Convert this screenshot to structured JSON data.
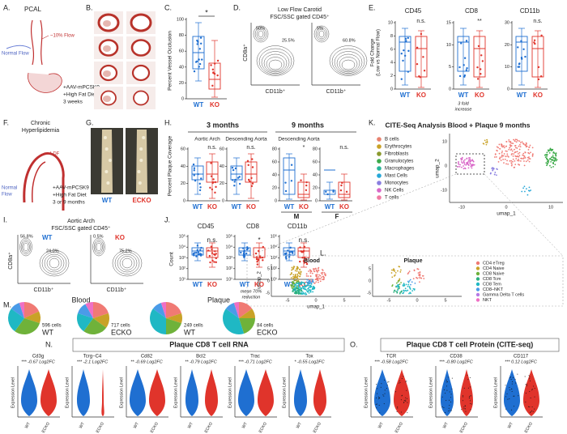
{
  "panels": {
    "A": {
      "label": "A.",
      "title": "PCAL",
      "normal": "Normal Flow",
      "low": "~10% Flow",
      "treatment": [
        "+AAV-mPCSK9",
        "+High Fat Diet",
        "3 weeks"
      ]
    },
    "B": {
      "label": "B."
    },
    "C": {
      "label": "C.",
      "y_label": "Percent Vessel Occlusion",
      "yticks": [
        "100",
        "80",
        "60",
        "40",
        "20",
        "0"
      ],
      "groups": [
        "WT",
        "KO"
      ],
      "sig": "*"
    },
    "D": {
      "label": "D.",
      "title": [
        "Low Flow Carotid",
        "FSC/SSC gated CD45⁺"
      ],
      "y_label": "CD8a⁺",
      "x_label": "CD11b⁺",
      "wt": [
        "50%",
        "25.5%"
      ],
      "ko": [
        "5%",
        "60.8%"
      ]
    },
    "E": {
      "label": "E.",
      "y_label": [
        "Fold Change",
        "(Low vs Normal Flow)"
      ],
      "plots": [
        {
          "title": "CD45",
          "sig": "n.s.",
          "yticks": [
            "10",
            "8",
            "6",
            "4",
            "2",
            "0"
          ]
        },
        {
          "title": "CD8",
          "sig": "**",
          "yticks": [
            "15",
            "10",
            "5",
            "0"
          ],
          "note": [
            "3 fold",
            "increase"
          ]
        },
        {
          "title": "CD11b",
          "sig": "n.s.",
          "yticks": [
            "30",
            "20",
            "10",
            "0"
          ]
        }
      ],
      "groups": [
        "WT",
        "KO"
      ]
    },
    "F": {
      "label": "F.",
      "title": [
        "Chronic",
        "Hyperlipidemia"
      ],
      "ldf": "LDF",
      "normal": [
        "Normal",
        "Flow"
      ],
      "treatment": [
        "+AAV-mPCSK9",
        "+High Fat Diet",
        "3 or 9 months"
      ]
    },
    "G": {
      "label": "G.",
      "groups": [
        "WT",
        "ECKO"
      ]
    },
    "H": {
      "label": "H.",
      "y_label": "Percent Plaque Coverage",
      "m3": "3 months",
      "m9": "9 months",
      "plots": [
        {
          "title": "Aortic Arch",
          "sig": "n.s."
        },
        {
          "title": "Descending Aorta",
          "sig": "n.s."
        },
        {
          "title": "Descending Aorta",
          "sig": "*",
          "sex": "M"
        },
        {
          "title": "",
          "sig": "n.s.",
          "sex": "F"
        }
      ],
      "yticks": [
        "60",
        "40",
        "20",
        "0"
      ],
      "yticks9": [
        "80",
        "60",
        "40",
        "20",
        "0"
      ],
      "groups": [
        "WT",
        "KO"
      ]
    },
    "I": {
      "label": "I.",
      "title": [
        "Aortic Arch",
        "FSC/SSC gated CD45⁺"
      ],
      "y_label": "CD8a⁺",
      "x_label": "CD11b⁺",
      "wt": [
        "56.8%",
        "24.0%"
      ],
      "ko": [
        "0.5%",
        "75.2%"
      ],
      "groups": [
        "WT",
        "KO"
      ]
    },
    "J": {
      "label": "J.",
      "y_label": "Count",
      "plots": [
        {
          "title": "CD45",
          "sig": "n.s."
        },
        {
          "title": "CD8",
          "sig": "*",
          "note": [
            "mean 70%",
            "reduction"
          ]
        },
        {
          "title": "CD11b",
          "sig": "n.s."
        }
      ],
      "yticks": [
        "10⁵",
        "10⁴",
        "10³",
        "10²",
        "10¹"
      ],
      "groups": [
        "WT",
        "KO"
      ]
    },
    "K": {
      "label": "K.",
      "title": "CITE-Seq Analysis Blood + Plaque 9 months",
      "legend": [
        "B cells",
        "Erythrocytes",
        "Fibroblasts",
        "Granulocytes",
        "Macrophages",
        "Mast Cells",
        "Monocytes",
        "NK Cells",
        "T cells"
      ],
      "x_label": "umap_1",
      "y_label": "umap_2",
      "xticks": [
        "-10",
        "0",
        "10"
      ],
      "yticks": [
        "10",
        "0",
        "-10"
      ]
    },
    "L": {
      "label": "L.",
      "panels": [
        "Blood",
        "Plaque"
      ],
      "legend": [
        "CD4 eTreg",
        "CD4 Naive",
        "CD8 Naive",
        "CD8 Tcm",
        "CD8 Tem",
        "CD8–NKT",
        "Gamma Delta T cells",
        "NKT"
      ],
      "x_label": "umap_1",
      "y_label": "umap_2",
      "xticks": [
        "-5",
        "0",
        "5"
      ],
      "yticks": [
        "5",
        "0",
        "-5"
      ]
    },
    "M": {
      "label": "M.",
      "blood": "Blood",
      "plaque": "Plaque",
      "pies": [
        {
          "cells": "596 cells",
          "group": "WT"
        },
        {
          "cells": "717 cells",
          "group": "ECKO"
        },
        {
          "cells": "249 cells",
          "group": "WT"
        },
        {
          "cells": "84 cells",
          "group": "ECKO"
        }
      ]
    },
    "N": {
      "label": "N.",
      "title": "Plaque CD8 T cell RNA",
      "y_label": "Expression Level",
      "groups": [
        "WT",
        "ECKO"
      ],
      "genes": [
        {
          "name": "Cd3g",
          "stat": "*** -0.67 Log2FC"
        },
        {
          "name": "Tcrg−C4",
          "stat": "*** -2.1 Log2FC"
        },
        {
          "name": "Cd82",
          "stat": "** -0.69 Log2FC"
        },
        {
          "name": "Bcl2",
          "stat": "** -0.79 Log2FC"
        },
        {
          "name": "Trac",
          "stat": "*** -0.71 Log2FC"
        },
        {
          "name": "Tox",
          "stat": "* -0.55 Log2FC"
        }
      ]
    },
    "O": {
      "label": "O.",
      "title": "Plaque CD8 T cell Protein (CITE-seq)",
      "y_label": "Expression Level",
      "groups": [
        "WT",
        "ECKO"
      ],
      "genes": [
        {
          "name": "TCR",
          "stat": "*** -0.58 Log2FC"
        },
        {
          "name": "CD38",
          "stat": "*** -0.80 Log2FC"
        },
        {
          "name": "CD117",
          "stat": "*** 0.12 Log2FC"
        }
      ]
    }
  }
}
